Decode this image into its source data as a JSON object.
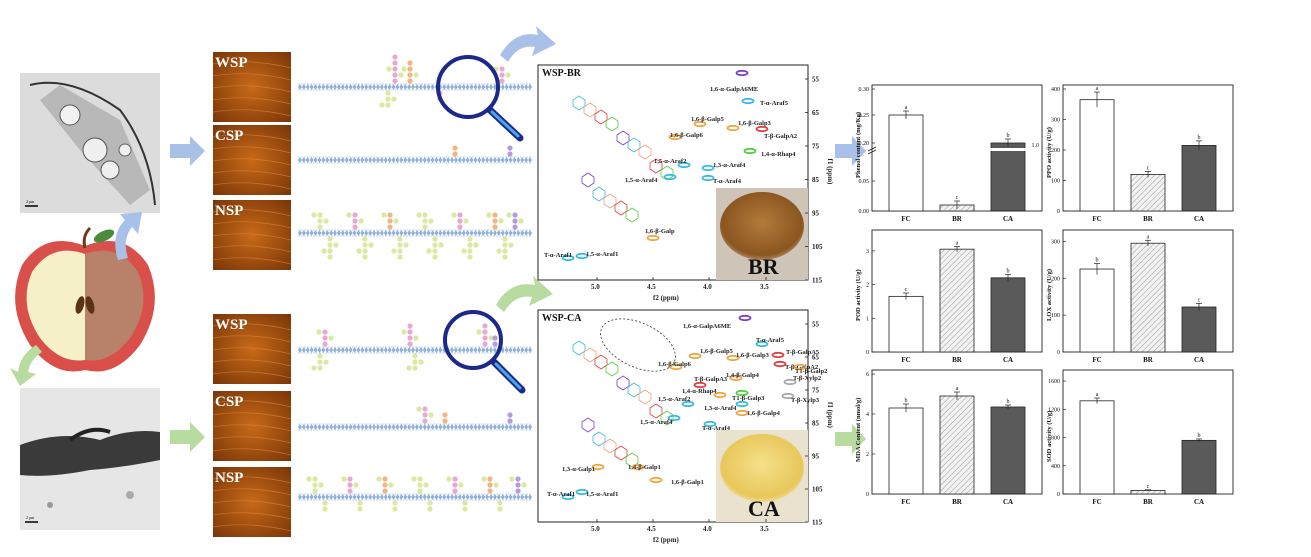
{
  "afm_labels": [
    "WSP",
    "CSP",
    "NSP",
    "WSP",
    "CSP",
    "NSP"
  ],
  "tem_scale_labels": [
    "2 μm",
    "2 μm"
  ],
  "nmr": [
    {
      "title": "WSP-BR",
      "sample_label": "BR",
      "xlabel": "f2 (ppm)",
      "ylabel": "f1 (ppm)",
      "xticks": [
        "5.0",
        "4.5",
        "4.0",
        "3.5"
      ],
      "yticks": [
        "55",
        "65",
        "75",
        "85",
        "95",
        "105",
        "115"
      ],
      "peaks": [
        {
          "label": "1,6-α-GalpA6ME",
          "color": "#7a3fd1"
        },
        {
          "label": "T-α-Araf5",
          "color": "#3bbbe0"
        },
        {
          "label": "1,6-β-Galp5",
          "color": "#f0a742"
        },
        {
          "label": "1,6-β-Galp3",
          "color": "#f0a742"
        },
        {
          "label": "T-β-GalpA2",
          "color": "#e04040"
        },
        {
          "label": "1,6-β-Galp6",
          "color": "#f0a742"
        },
        {
          "label": "1,4-α-Rhap4",
          "color": "#4fcf3f"
        },
        {
          "label": "1,5-α-Araf2",
          "color": "#3bbbe0"
        },
        {
          "label": "1,3-α-Araf4",
          "color": "#3bbbe0"
        },
        {
          "label": "1,5-α-Araf4",
          "color": "#3bbbe0"
        },
        {
          "label": "T-α-Araf4",
          "color": "#3bbbe0"
        },
        {
          "label": "1,6-β-Galp",
          "color": "#f0a742"
        },
        {
          "label": "T-α-Araf1",
          "color": "#3bbbe0"
        },
        {
          "label": "1,5-α-Araf1",
          "color": "#3bbbe0"
        }
      ]
    },
    {
      "title": "WSP-CA",
      "sample_label": "CA",
      "xlabel": "f2 (ppm)",
      "ylabel": "f1 (ppm)",
      "xticks": [
        "5.0",
        "4.5",
        "4.0",
        "3.5"
      ],
      "yticks": [
        "55",
        "65",
        "75",
        "85",
        "95",
        "105",
        "115"
      ],
      "peaks": [
        {
          "label": "1,6-α-GalpA6ME",
          "color": "#7a3fd1"
        },
        {
          "label": "T-α-Araf5",
          "color": "#3bbbe0"
        },
        {
          "label": "1,6-β-Galp5",
          "color": "#f0a742"
        },
        {
          "label": "T-β-GalpA5",
          "color": "#e04040"
        },
        {
          "label": "1,6-β-Galp3",
          "color": "#f0a742"
        },
        {
          "label": "T-β-GalpA2",
          "color": "#e04040"
        },
        {
          "label": "1,6-β-Galp6",
          "color": "#f0a742"
        },
        {
          "label": "T1-β-Galp2",
          "color": "#f0a742"
        },
        {
          "label": "1,4-β-Galp4",
          "color": "#f0a742"
        },
        {
          "label": "T-β-GalpA3",
          "color": "#e04040"
        },
        {
          "label": "T-β-Xylp2",
          "color": "#aaaaaa"
        },
        {
          "label": "1,4-α-Rhap4",
          "color": "#4fcf3f"
        },
        {
          "label": "T1-β-Galp3",
          "color": "#f0a742"
        },
        {
          "label": "T-β-Xylp3",
          "color": "#aaaaaa"
        },
        {
          "label": "1,5-α-Araf2",
          "color": "#3bbbe0"
        },
        {
          "label": "1,3-α-Araf4",
          "color": "#3bbbe0"
        },
        {
          "label": "1,6-β-Galp4",
          "color": "#f0a742"
        },
        {
          "label": "1,5-α-Araf4",
          "color": "#3bbbe0"
        },
        {
          "label": "T-α-Araf4",
          "color": "#3bbbe0"
        },
        {
          "label": "1,3-α-Galp1",
          "color": "#f0a742"
        },
        {
          "label": "1,4-β-Galp1",
          "color": "#f0a742"
        },
        {
          "label": "1,6-β-Galp1",
          "color": "#f0a742"
        },
        {
          "label": "T-α-Araf1",
          "color": "#3bbbe0"
        },
        {
          "label": "1,5-α-Araf1",
          "color": "#3bbbe0"
        }
      ]
    }
  ],
  "chart_data": [
    {
      "type": "bar",
      "ylabel": "Phenol content (mg/Kg)",
      "categories": [
        "FC",
        "BR",
        "CA"
      ],
      "values": [
        0.23,
        0.01,
        0.8
      ],
      "errors": [
        0.01,
        0.003,
        0.03
      ],
      "letters": [
        "a",
        "c",
        "b"
      ],
      "ylim": [
        0,
        0.3
      ],
      "yticks": [
        "0.00",
        "0.05",
        "0.20",
        "0.25",
        "0.30",
        "1.0"
      ],
      "axis_break": true
    },
    {
      "type": "bar",
      "ylabel": "PPO activity (U/g)",
      "categories": [
        "FC",
        "BR",
        "CA"
      ],
      "values": [
        365,
        120,
        215
      ],
      "errors": [
        25,
        10,
        15
      ],
      "letters": [
        "a",
        "c",
        "b"
      ],
      "ylim": [
        0,
        400
      ],
      "yticks": [
        "0",
        "100",
        "200",
        "300",
        "400"
      ]
    },
    {
      "type": "bar",
      "ylabel": "POD activity (U/g)",
      "categories": [
        "FC",
        "BR",
        "CA"
      ],
      "values": [
        1.65,
        3.05,
        2.2
      ],
      "errors": [
        0.1,
        0.08,
        0.1
      ],
      "letters": [
        "c",
        "a",
        "b"
      ],
      "ylim": [
        0,
        3.5
      ],
      "yticks": [
        "0",
        "1",
        "2",
        "3"
      ]
    },
    {
      "type": "bar",
      "ylabel": "LOX activity (U/g)",
      "categories": [
        "FC",
        "BR",
        "CA"
      ],
      "values": [
        225,
        295,
        122
      ],
      "errors": [
        15,
        8,
        10
      ],
      "letters": [
        "b",
        "a",
        "c"
      ],
      "ylim": [
        0,
        320
      ],
      "yticks": [
        "0",
        "100",
        "200",
        "300"
      ]
    },
    {
      "type": "bar",
      "ylabel": "MDA Content (nmol/g)",
      "categories": [
        "FC",
        "BR",
        "CA"
      ],
      "values": [
        4.3,
        4.9,
        4.35
      ],
      "errors": [
        0.2,
        0.2,
        0.1
      ],
      "letters": [
        "b",
        "a",
        "b"
      ],
      "ylim": [
        0,
        6
      ],
      "yticks": [
        "0",
        "2",
        "4",
        "6"
      ]
    },
    {
      "type": "bar",
      "ylabel": "SOD activity (U/g)",
      "categories": [
        "FC",
        "BR",
        "CA"
      ],
      "values": [
        1320,
        50,
        760
      ],
      "errors": [
        40,
        10,
        20
      ],
      "letters": [
        "a",
        "c",
        "b"
      ],
      "ylim": [
        0,
        1700
      ],
      "yticks": [
        "0",
        "400",
        "800",
        "1200",
        "1600"
      ]
    }
  ],
  "colors": {
    "arrow_blue": "#a9c0e8",
    "arrow_green": "#b8dba0",
    "backbone": "#8fb0d8",
    "fc_bar": "#ffffff",
    "br_bar": "#e6e6e6",
    "ca_bar": "#5a5a5a",
    "lens": "#1b2a8a"
  }
}
